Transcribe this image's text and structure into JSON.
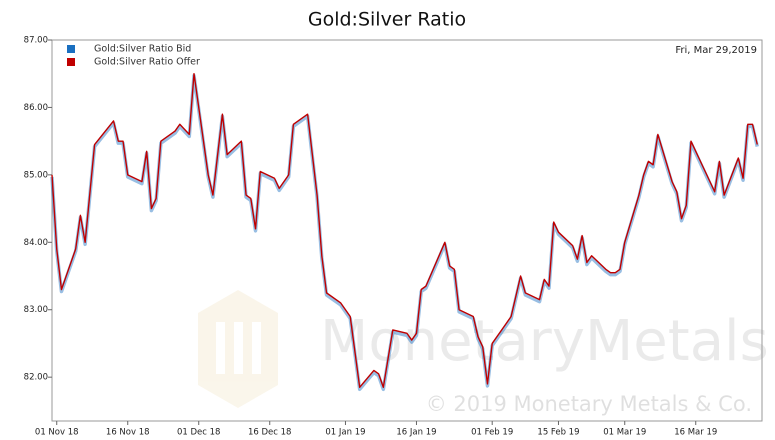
{
  "chart_data": {
    "type": "line",
    "title": "Gold:Silver Ratio",
    "annotation": "Fri, Mar 29,2019",
    "watermark": "MonetaryMetals",
    "copyright": "© 2019 Monetary Metals & Co.",
    "x": [
      "2018-10-31",
      "2018-11-01",
      "2018-11-02",
      "2018-11-05",
      "2018-11-06",
      "2018-11-07",
      "2018-11-09",
      "2018-11-13",
      "2018-11-14",
      "2018-11-15",
      "2018-11-16",
      "2018-11-19",
      "2018-11-20",
      "2018-11-21",
      "2018-11-22",
      "2018-11-23",
      "2018-11-26",
      "2018-11-27",
      "2018-11-29",
      "2018-11-30",
      "2018-12-03",
      "2018-12-04",
      "2018-12-06",
      "2018-12-07",
      "2018-12-10",
      "2018-12-11",
      "2018-12-12",
      "2018-12-13",
      "2018-12-14",
      "2018-12-17",
      "2018-12-18",
      "2018-12-20",
      "2018-12-21",
      "2018-12-24",
      "2018-12-26",
      "2018-12-27",
      "2018-12-28",
      "2018-12-31",
      "2019-01-02",
      "2019-01-04",
      "2019-01-07",
      "2019-01-08",
      "2019-01-09",
      "2019-01-11",
      "2019-01-14",
      "2019-01-15",
      "2019-01-16",
      "2019-01-17",
      "2019-01-18",
      "2019-01-22",
      "2019-01-23",
      "2019-01-24",
      "2019-01-25",
      "2019-01-28",
      "2019-01-29",
      "2019-01-30",
      "2019-01-31",
      "2019-02-01",
      "2019-02-04",
      "2019-02-05",
      "2019-02-07",
      "2019-02-08",
      "2019-02-11",
      "2019-02-12",
      "2019-02-13",
      "2019-02-14",
      "2019-02-15",
      "2019-02-18",
      "2019-02-19",
      "2019-02-20",
      "2019-02-21",
      "2019-02-22",
      "2019-02-25",
      "2019-02-26",
      "2019-02-27",
      "2019-02-28",
      "2019-03-01",
      "2019-03-04",
      "2019-03-05",
      "2019-03-06",
      "2019-03-07",
      "2019-03-08",
      "2019-03-11",
      "2019-03-12",
      "2019-03-13",
      "2019-03-14",
      "2019-03-15",
      "2019-03-18",
      "2019-03-19",
      "2019-03-20",
      "2019-03-21",
      "2019-03-22",
      "2019-03-25",
      "2019-03-26",
      "2019-03-27",
      "2019-03-28",
      "2019-03-29"
    ],
    "series": [
      {
        "name": "Gold:Silver Ratio Bid",
        "color": "#1a6fc0",
        "values": [
          84.97,
          83.87,
          83.27,
          83.87,
          84.37,
          83.97,
          85.42,
          85.77,
          85.47,
          85.47,
          84.97,
          84.87,
          85.32,
          84.47,
          84.62,
          85.47,
          85.62,
          85.72,
          85.57,
          86.47,
          84.97,
          84.67,
          85.87,
          85.27,
          85.47,
          84.67,
          84.62,
          84.17,
          85.02,
          84.92,
          84.77,
          84.97,
          85.72,
          85.87,
          84.67,
          83.77,
          83.22,
          83.07,
          82.87,
          81.82,
          82.07,
          82.02,
          81.82,
          82.67,
          82.62,
          82.52,
          82.62,
          83.27,
          83.32,
          83.97,
          83.62,
          83.57,
          82.97,
          82.87,
          82.57,
          82.42,
          81.87,
          82.47,
          82.77,
          82.87,
          83.47,
          83.22,
          83.12,
          83.42,
          83.32,
          84.27,
          84.12,
          83.92,
          83.72,
          84.07,
          83.67,
          83.77,
          83.57,
          83.52,
          83.52,
          83.57,
          83.97,
          84.67,
          84.97,
          85.17,
          85.12,
          85.57,
          84.87,
          84.72,
          84.32,
          84.52,
          85.47,
          85.02,
          84.87,
          84.72,
          85.17,
          84.67,
          85.22,
          84.92,
          85.72,
          85.72,
          85.42
        ]
      },
      {
        "name": "Gold:Silver Ratio Offer",
        "color": "#c00000",
        "values": [
          85.0,
          83.9,
          83.3,
          83.9,
          84.4,
          84.0,
          85.45,
          85.8,
          85.5,
          85.5,
          85.0,
          84.9,
          85.35,
          84.5,
          84.65,
          85.5,
          85.65,
          85.75,
          85.6,
          86.5,
          85.0,
          84.7,
          85.9,
          85.3,
          85.5,
          84.7,
          84.65,
          84.2,
          85.05,
          84.95,
          84.8,
          85.0,
          85.75,
          85.9,
          84.7,
          83.8,
          83.25,
          83.1,
          82.9,
          81.85,
          82.1,
          82.05,
          81.85,
          82.7,
          82.65,
          82.55,
          82.65,
          83.3,
          83.35,
          84.0,
          83.65,
          83.6,
          83.0,
          82.9,
          82.6,
          82.45,
          81.9,
          82.5,
          82.8,
          82.9,
          83.5,
          83.25,
          83.15,
          83.45,
          83.35,
          84.3,
          84.15,
          83.95,
          83.75,
          84.1,
          83.7,
          83.8,
          83.6,
          83.55,
          83.55,
          83.6,
          84.0,
          84.7,
          85.0,
          85.2,
          85.15,
          85.6,
          84.9,
          84.75,
          84.35,
          84.55,
          85.5,
          85.05,
          84.9,
          84.75,
          85.2,
          84.7,
          85.25,
          84.95,
          85.75,
          85.75,
          85.45
        ]
      }
    ],
    "xlim": [
      "2018-10-31",
      "2019-03-30"
    ],
    "xticks": [
      {
        "value": "2018-11-01",
        "label": "01 Nov 18"
      },
      {
        "value": "2018-11-16",
        "label": "16 Nov 18"
      },
      {
        "value": "2018-12-01",
        "label": "01 Dec 18"
      },
      {
        "value": "2018-12-16",
        "label": "16 Dec 18"
      },
      {
        "value": "2019-01-01",
        "label": "01 Jan 19"
      },
      {
        "value": "2019-01-16",
        "label": "16 Jan 19"
      },
      {
        "value": "2019-02-01",
        "label": "01 Feb 19"
      },
      {
        "value": "2019-02-15",
        "label": "15 Feb 19"
      },
      {
        "value": "2019-03-01",
        "label": "01 Mar 19"
      },
      {
        "value": "2019-03-16",
        "label": "16 Mar 19"
      }
    ],
    "ylim": [
      81.35,
      87
    ],
    "yticks": [
      {
        "value": 82,
        "label": "82.00"
      },
      {
        "value": 83,
        "label": "83.00"
      },
      {
        "value": 84,
        "label": "84.00"
      },
      {
        "value": 85,
        "label": "85.00"
      },
      {
        "value": 86,
        "label": "86.00"
      },
      {
        "value": 87,
        "label": "87.00"
      }
    ],
    "legend": "top-left"
  }
}
